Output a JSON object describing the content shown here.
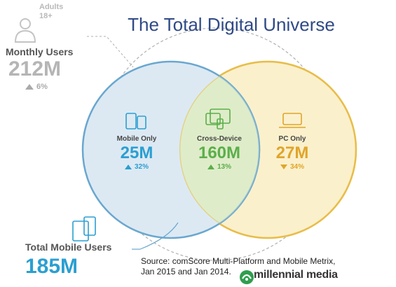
{
  "title": "The Total Digital Universe",
  "adults": {
    "line1": "Adults",
    "line2": "18+"
  },
  "monthly_users": {
    "label": "Monthly Users",
    "value": "212M",
    "change": "6%"
  },
  "segments": {
    "mobile_only": {
      "label": "Mobile Only",
      "value": "25M",
      "change": "32%"
    },
    "cross_device": {
      "label": "Cross-Device",
      "value": "160M",
      "change": "13%"
    },
    "pc_only": {
      "label": "PC Only",
      "value": "27M",
      "change": "34%"
    }
  },
  "total_mobile": {
    "label": "Total Mobile Users",
    "value": "185M"
  },
  "source": {
    "line1": "Source: comScore Multi-Platform and Mobile Metrix,",
    "line2": "Jan 2015 and Jan 2014."
  },
  "brand": {
    "name": "millennial media"
  },
  "colors": {
    "mobile": "#2b9fd1",
    "cross": "#5aaf4a",
    "pc": "#e0a52a",
    "mobile_fill": "#dce9f3",
    "cross_fill": "#dfecc9",
    "pc_fill": "#fbf0cc",
    "title": "#2f4a86"
  }
}
